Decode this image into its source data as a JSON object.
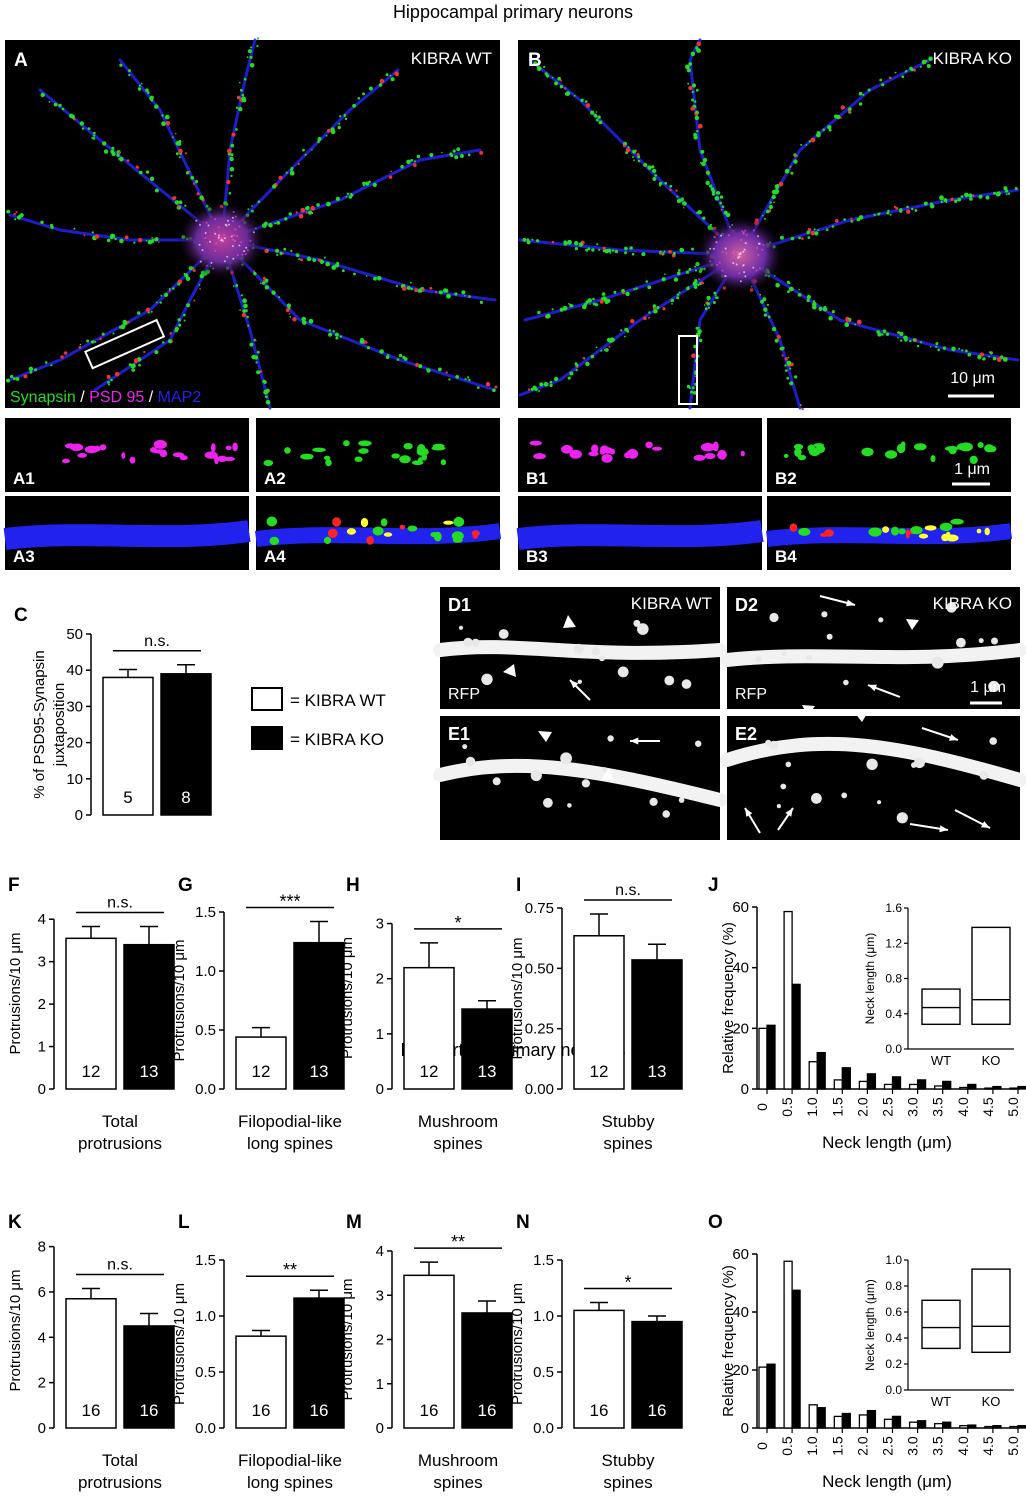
{
  "section_titles": {
    "hippocampal": "Hippocampal primary neurons",
    "neocortical": "Neocortical primary neurons"
  },
  "micrographs": {
    "A": {
      "letter": "A",
      "condition": "KIBRA WT"
    },
    "B": {
      "letter": "B",
      "condition": "KIBRA KO",
      "scale_bar": "10 μm"
    },
    "legend_stain": {
      "synapsin": "Synapsin",
      "sep1": " / ",
      "psd95": "PSD 95",
      "sep2": " / ",
      "map2": "MAP2"
    },
    "insets": [
      "A1",
      "A2",
      "A3",
      "A4",
      "B1",
      "B2",
      "B3",
      "B4"
    ],
    "inset_scale_bar": "1 μm",
    "D1": {
      "label": "D1",
      "condition": "KIBRA WT",
      "stain": "RFP"
    },
    "D2": {
      "label": "D2",
      "condition": "KIBRA KO",
      "stain": "RFP",
      "scale_bar": "1 μm"
    },
    "E1": {
      "label": "E1"
    },
    "E2": {
      "label": "E2"
    }
  },
  "colors": {
    "synapsin": "#22dd22",
    "psd95": "#ee22ee",
    "map2": "#2222ee",
    "wt_fill": "#ffffff",
    "ko_fill": "#000000"
  },
  "legend": {
    "wt_label": "= KIBRA WT",
    "ko_label": "= KIBRA KO"
  },
  "chart_data": [
    {
      "panel": "C",
      "type": "bar",
      "ylabel": [
        "% of PSD95-Synapsin",
        "juxtaposition"
      ],
      "ylim": [
        0,
        50
      ],
      "yticks": [
        "0",
        "10",
        "20",
        "30",
        "40",
        "50"
      ],
      "categories": [
        "KIBRA WT",
        "KIBRA KO"
      ],
      "values": [
        38,
        39
      ],
      "errors": [
        2.2,
        2.5
      ],
      "n": [
        "5",
        "8"
      ],
      "significance": "n.s.",
      "xlabel": []
    },
    {
      "panel": "F",
      "type": "bar",
      "ylabel": [
        "Protrusions/10 μm"
      ],
      "ylim": [
        0,
        4.5
      ],
      "yticks": [
        "0",
        "1",
        "2",
        "3",
        "4"
      ],
      "categories": [
        "KIBRA WT",
        "KIBRA KO"
      ],
      "values": [
        3.55,
        3.4
      ],
      "errors": [
        0.28,
        0.43
      ],
      "n": [
        "12",
        "13"
      ],
      "significance": "n.s.",
      "xlabel": [
        "Total",
        "protrusions"
      ]
    },
    {
      "panel": "G",
      "type": "bar",
      "ylabel": [
        "Protrusions/10 μm"
      ],
      "ylim": [
        0,
        1.5
      ],
      "yticks": [
        "0.0",
        "0.5",
        "1.0",
        "1.5"
      ],
      "categories": [
        "KIBRA WT",
        "KIBRA KO"
      ],
      "values": [
        0.44,
        1.24
      ],
      "errors": [
        0.08,
        0.18
      ],
      "n": [
        "12",
        "13"
      ],
      "significance": "***",
      "xlabel": [
        "Filopodial-like",
        "long spines"
      ]
    },
    {
      "panel": "H",
      "type": "bar",
      "ylabel": [
        "Protrusions/10 μm"
      ],
      "ylim": [
        0,
        3.3
      ],
      "yticks": [
        "0",
        "1",
        "2",
        "3"
      ],
      "categories": [
        "KIBRA WT",
        "KIBRA KO"
      ],
      "values": [
        2.2,
        1.45
      ],
      "errors": [
        0.45,
        0.15
      ],
      "n": [
        "12",
        "13"
      ],
      "significance": "*",
      "xlabel": [
        "Mushroom",
        "spines"
      ]
    },
    {
      "panel": "I",
      "type": "bar",
      "ylabel": [
        "Protrusions/10 μm"
      ],
      "ylim": [
        0,
        0.75
      ],
      "yticks": [
        "0.00",
        "0.25",
        "0.50",
        "0.75"
      ],
      "categories": [
        "KIBRA WT",
        "KIBRA KO"
      ],
      "values": [
        0.635,
        0.535
      ],
      "errors": [
        0.09,
        0.065
      ],
      "n": [
        "12",
        "13"
      ],
      "significance": "n.s.",
      "xlabel": [
        "Stubby",
        "spines"
      ]
    },
    {
      "panel": "J",
      "type": "bar",
      "ylabel": [
        "Relative frequency (%)"
      ],
      "xlabel": [
        "Neck length (μm)"
      ],
      "ylim": [
        0,
        60
      ],
      "yticks": [
        "0",
        "20",
        "40",
        "60"
      ],
      "categories": [
        "0",
        "0.5",
        "1.0",
        "1.5",
        "2.0",
        "2.5",
        "3.0",
        "3.5",
        "4.0",
        "4.5",
        "5.0"
      ],
      "series": [
        {
          "name": "KIBRA WT",
          "values": [
            20,
            58.5,
            9,
            3,
            2.5,
            1.5,
            1.5,
            1,
            0.5,
            0.3,
            0.3
          ]
        },
        {
          "name": "KIBRA KO",
          "values": [
            21,
            34.5,
            12,
            7,
            5,
            4,
            3,
            2.5,
            1.5,
            0.8,
            0.8
          ]
        }
      ],
      "inset": {
        "ylabel": "Neck length (μm)",
        "ylim": [
          0,
          1.6
        ],
        "yticks": [
          "0.0",
          "0.4",
          "0.8",
          "1.2",
          "1.6"
        ],
        "groups": [
          "WT",
          "KO"
        ],
        "boxes": [
          {
            "low": 0.28,
            "median": 0.47,
            "high": 0.68
          },
          {
            "low": 0.28,
            "median": 0.56,
            "high": 1.38
          }
        ]
      }
    },
    {
      "panel": "K",
      "type": "bar",
      "ylabel": [
        "Protrusions/10 μm"
      ],
      "ylim": [
        0,
        8.6
      ],
      "yticks": [
        "0",
        "2",
        "4",
        "6",
        "8"
      ],
      "categories": [
        "KIBRA WT",
        "KIBRA KO"
      ],
      "values": [
        5.7,
        4.5
      ],
      "errors": [
        0.45,
        0.55
      ],
      "n": [
        "16",
        "16"
      ],
      "significance": "n.s.",
      "xlabel": [
        "Total",
        "protrusions"
      ]
    },
    {
      "panel": "L",
      "type": "bar",
      "ylabel": [
        "Protrusions/10 μm"
      ],
      "ylim": [
        0,
        1.5
      ],
      "yticks": [
        "0.0",
        "0.5",
        "1.0",
        "1.5"
      ],
      "categories": [
        "KIBRA WT",
        "KIBRA KO"
      ],
      "values": [
        0.82,
        1.16
      ],
      "errors": [
        0.05,
        0.07
      ],
      "n": [
        "16",
        "16"
      ],
      "significance": "**",
      "xlabel": [
        "Filopodial-like",
        "long spines"
      ]
    },
    {
      "panel": "M",
      "type": "bar",
      "ylabel": [
        "Protrusions/10 μm"
      ],
      "ylim": [
        0,
        4
      ],
      "yticks": [
        "0",
        "1",
        "2",
        "3",
        "4"
      ],
      "categories": [
        "KIBRA WT",
        "KIBRA KO"
      ],
      "values": [
        3.45,
        2.6
      ],
      "errors": [
        0.3,
        0.27
      ],
      "n": [
        "16",
        "16"
      ],
      "significance": "**",
      "xlabel": [
        "Mushroom",
        "spines"
      ]
    },
    {
      "panel": "N",
      "type": "bar",
      "ylabel": [
        "Protrusions/10 μm"
      ],
      "ylim": [
        0,
        1.5
      ],
      "yticks": [
        "0.0",
        "0.5",
        "1.0",
        "1.5"
      ],
      "categories": [
        "KIBRA WT",
        "KIBRA KO"
      ],
      "values": [
        1.05,
        0.95
      ],
      "errors": [
        0.07,
        0.05
      ],
      "n": [
        "16",
        "16"
      ],
      "significance": "*",
      "xlabel": [
        "Stubby",
        "spines"
      ]
    },
    {
      "panel": "O",
      "type": "bar",
      "ylabel": [
        "Relative frequency (%)"
      ],
      "xlabel": [
        "Neck length (μm)"
      ],
      "ylim": [
        0,
        60
      ],
      "yticks": [
        "0",
        "20",
        "40",
        "60"
      ],
      "categories": [
        "0",
        "0.5",
        "1.0",
        "1.5",
        "2.0",
        "2.5",
        "3.0",
        "3.5",
        "4.0",
        "4.5",
        "5.0"
      ],
      "series": [
        {
          "name": "KIBRA WT",
          "values": [
            21,
            57.5,
            8,
            4,
            4.5,
            3,
            2,
            1.5,
            0.8,
            0.5,
            0.5
          ]
        },
        {
          "name": "KIBRA KO",
          "values": [
            22,
            47.5,
            7,
            5,
            6,
            4,
            2.5,
            2,
            1,
            0.8,
            0.8
          ]
        }
      ],
      "inset": {
        "ylabel": "Neck length (μm)",
        "ylim": [
          0,
          1.0
        ],
        "yticks": [
          "0.0",
          "0.2",
          "0.4",
          "0.6",
          "0.8",
          "1.0"
        ],
        "groups": [
          "WT",
          "KO"
        ],
        "boxes": [
          {
            "low": 0.32,
            "median": 0.48,
            "high": 0.69
          },
          {
            "low": 0.29,
            "median": 0.49,
            "high": 0.93
          }
        ]
      }
    }
  ]
}
